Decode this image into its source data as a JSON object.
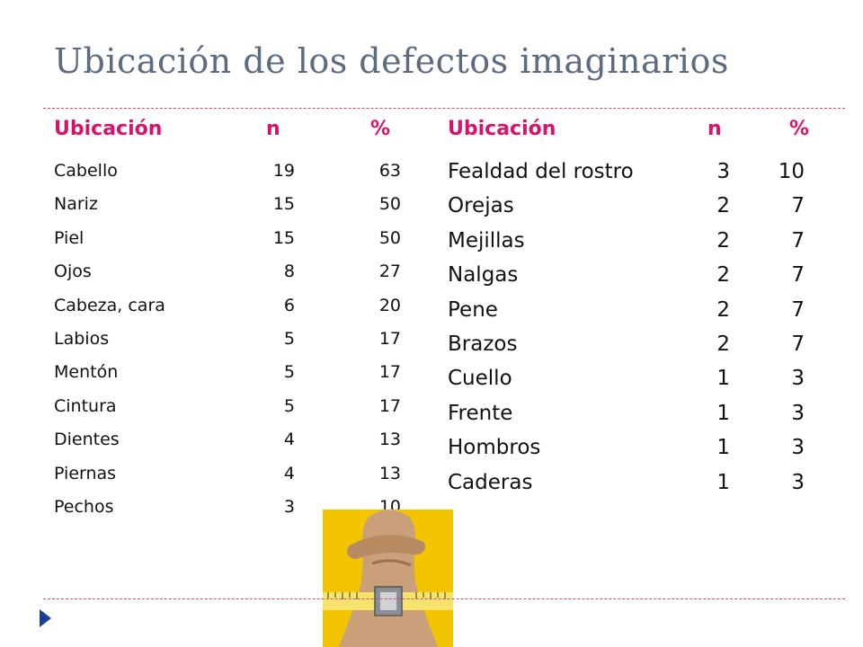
{
  "title": "Ubicación de los defectos imaginarios",
  "left_table": {
    "headers": {
      "location": "Ubicación",
      "n": "n",
      "pct": "%"
    },
    "rows": [
      {
        "location": "Cabello",
        "n": "19",
        "pct": "63"
      },
      {
        "location": "Nariz",
        "n": "15",
        "pct": "50"
      },
      {
        "location": "Piel",
        "n": "15",
        "pct": "50"
      },
      {
        "location": "Ojos",
        "n": "8",
        "pct": "27"
      },
      {
        "location": "Cabeza, cara",
        "n": "6",
        "pct": "20"
      },
      {
        "location": "Labios",
        "n": "5",
        "pct": "17"
      },
      {
        "location": "Mentón",
        "n": "5",
        "pct": "17"
      },
      {
        "location": "Cintura",
        "n": "5",
        "pct": "17"
      },
      {
        "location": "Dientes",
        "n": "4",
        "pct": "13"
      },
      {
        "location": "Piernas",
        "n": "4",
        "pct": "13"
      },
      {
        "location": "Pechos",
        "n": "3",
        "pct": "10"
      }
    ]
  },
  "right_table": {
    "headers": {
      "location": "Ubicación",
      "n": "n",
      "pct": "%"
    },
    "rows": [
      {
        "location": "Fealdad del rostro",
        "n": "3",
        "pct": "10"
      },
      {
        "location": "Orejas",
        "n": "2",
        "pct": "7"
      },
      {
        "location": "Mejillas",
        "n": "2",
        "pct": "7"
      },
      {
        "location": "Nalgas",
        "n": "2",
        "pct": "7"
      },
      {
        "location": "Pene",
        "n": "2",
        "pct": "7"
      },
      {
        "location": "Brazos",
        "n": "2",
        "pct": "7"
      },
      {
        "location": "Cuello",
        "n": "1",
        "pct": "3"
      },
      {
        "location": "Frente",
        "n": "1",
        "pct": "3"
      },
      {
        "location": "Hombros",
        "n": "1",
        "pct": "3"
      },
      {
        "location": "Caderas",
        "n": "1",
        "pct": "3"
      }
    ]
  },
  "colors": {
    "title": "#5b6b80",
    "header": "#d6136a",
    "rule": "#d6478a",
    "bullet": "#1b3f8f",
    "photo_bg": "#f2c500"
  }
}
